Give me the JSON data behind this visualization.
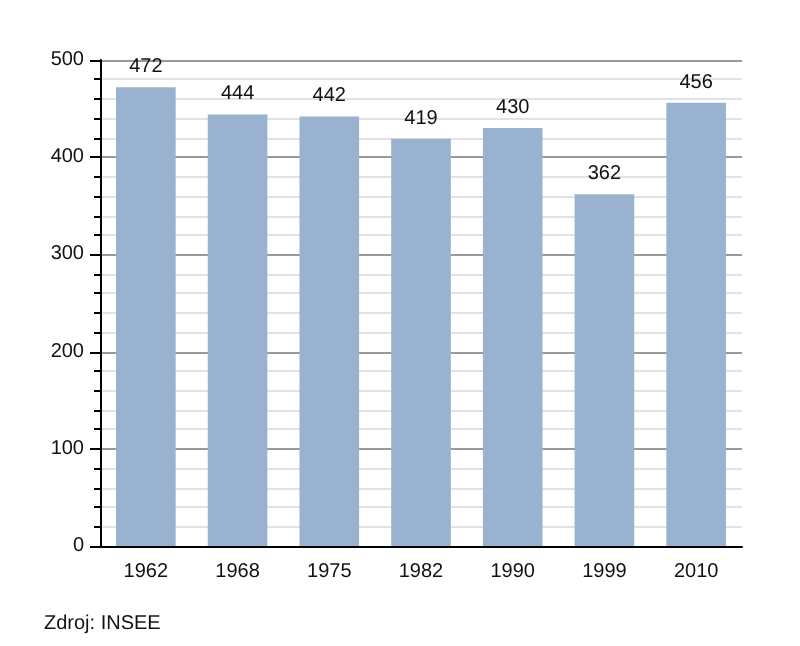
{
  "chart_data": {
    "type": "bar",
    "categories": [
      "1962",
      "1968",
      "1975",
      "1982",
      "1990",
      "1999",
      "2010"
    ],
    "values": [
      472,
      444,
      442,
      419,
      430,
      362,
      456
    ],
    "color": "#98b2cf",
    "ylim": [
      0,
      500
    ],
    "yticks": [
      0,
      100,
      200,
      300,
      400,
      500
    ],
    "grid": "y",
    "data_labels": true,
    "annotations": [
      "Zdroj: INSEE"
    ]
  }
}
